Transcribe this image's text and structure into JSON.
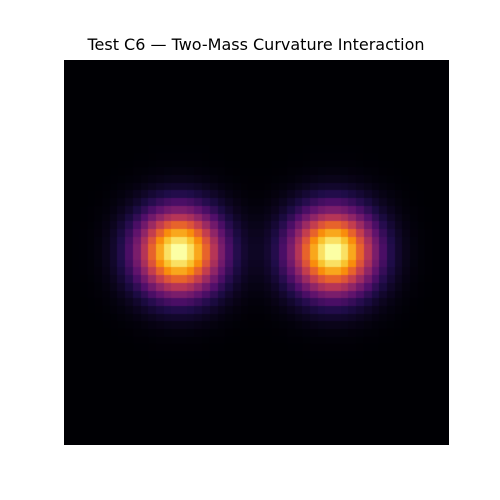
{
  "chart_data": {
    "type": "heatmap",
    "title": "Test C6 — Two-Mass Curvature Interaction",
    "xlabel": "",
    "ylabel": "",
    "axes_visible": false,
    "colormap": "inferno",
    "background_color": "#000004",
    "grid": false,
    "legend": "none",
    "x_range": [
      0,
      1
    ],
    "y_range": [
      0,
      1
    ],
    "resolution": [
      50,
      50
    ],
    "sources": [
      {
        "x": 0.3,
        "y": 0.5,
        "sigma": 0.075,
        "amplitude": 1.0
      },
      {
        "x": 0.7,
        "y": 0.5,
        "sigma": 0.075,
        "amplitude": 1.0
      }
    ]
  }
}
